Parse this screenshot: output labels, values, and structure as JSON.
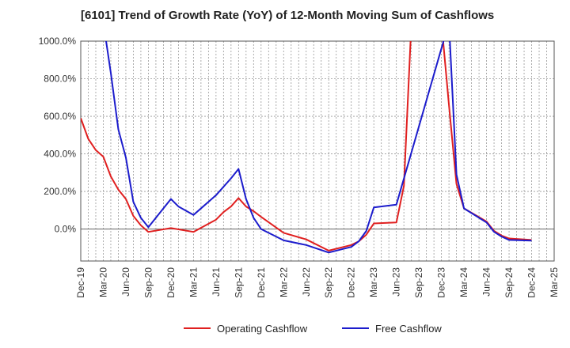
{
  "chart_data": {
    "type": "line",
    "title": "[6101]  Trend of Growth Rate (YoY) of 12-Month Moving Sum of Cashflows",
    "xlabel": "",
    "ylabel": "",
    "ylim": [
      -170,
      1000
    ],
    "y_ticks": [
      "1000.0%",
      "800.0%",
      "600.0%",
      "400.0%",
      "200.0%",
      "0.0%"
    ],
    "y_tick_values": [
      1000,
      800,
      600,
      400,
      200,
      0
    ],
    "x_ticks": [
      "Dec-19",
      "Mar-20",
      "Jun-20",
      "Sep-20",
      "Dec-20",
      "Mar-21",
      "Jun-21",
      "Sep-21",
      "Dec-21",
      "Mar-22",
      "Jun-22",
      "Sep-22",
      "Dec-22",
      "Mar-23",
      "Jun-23",
      "Sep-23",
      "Dec-23",
      "Mar-24",
      "Jun-24",
      "Sep-24",
      "Dec-24",
      "Mar-25"
    ],
    "x_tick_index": [
      0,
      3,
      6,
      9,
      12,
      15,
      18,
      21,
      24,
      27,
      30,
      33,
      36,
      39,
      42,
      45,
      48,
      51,
      54,
      57,
      60,
      63
    ],
    "grid": true,
    "legend_position": "bottom",
    "colors": {
      "operating": "#e02020",
      "free": "#1c1ccc"
    },
    "series": [
      {
        "name": "Operating Cashflow",
        "color": "#e02020",
        "x": [
          0,
          1,
          2,
          3,
          4,
          5,
          6,
          7,
          8,
          9,
          12,
          15,
          18,
          19,
          20,
          21,
          22,
          23,
          24,
          27,
          30,
          33,
          36,
          37,
          38,
          39,
          42,
          43,
          44,
          45,
          48,
          49,
          50,
          51,
          54,
          55,
          56,
          57,
          60
        ],
        "values": [
          590,
          480,
          420,
          385,
          280,
          210,
          160,
          70,
          20,
          -15,
          5,
          -15,
          50,
          90,
          120,
          165,
          120,
          95,
          65,
          -20,
          -55,
          -115,
          -85,
          -65,
          -30,
          30,
          35,
          230,
          1100,
          1100,
          1100,
          660,
          240,
          110,
          40,
          -10,
          -35,
          -50,
          -58
        ]
      },
      {
        "name": "Free Cashflow",
        "color": "#1c1ccc",
        "x": [
          3,
          4,
          5,
          6,
          7,
          8,
          9,
          12,
          13,
          15,
          18,
          20,
          21,
          22,
          23,
          24,
          27,
          30,
          33,
          36,
          37,
          38,
          39,
          42,
          49,
          50,
          51,
          54,
          55,
          56,
          57,
          60
        ],
        "values": [
          1100,
          830,
          530,
          380,
          145,
          60,
          10,
          160,
          120,
          75,
          180,
          270,
          320,
          160,
          60,
          0,
          -60,
          -85,
          -125,
          -95,
          -65,
          -10,
          115,
          130,
          1100,
          290,
          110,
          35,
          -15,
          -40,
          -58,
          -62
        ]
      }
    ]
  }
}
